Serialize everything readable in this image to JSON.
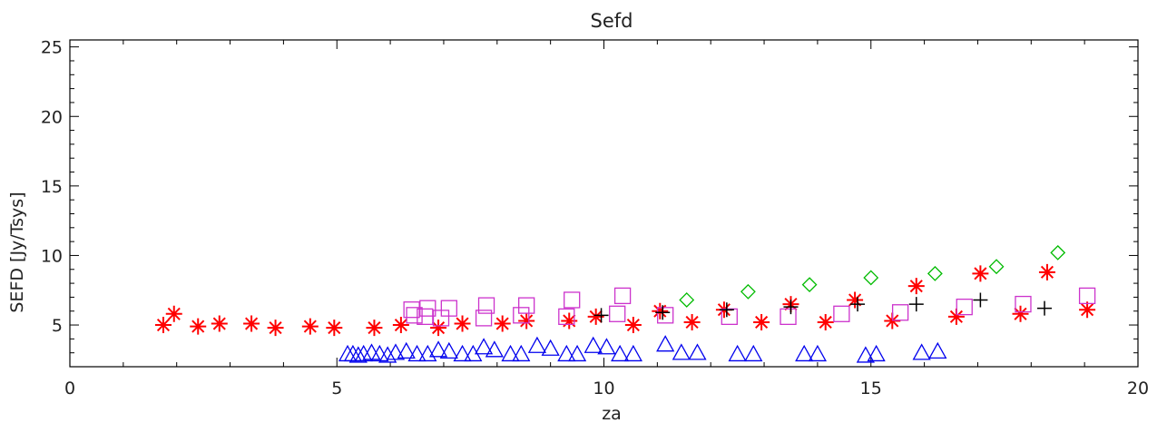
{
  "chart_data": {
    "type": "scatter",
    "title": "Sefd",
    "xlabel": "za",
    "ylabel": "SEFD [Jy/Tsys]",
    "xlim": [
      0,
      20
    ],
    "ylim": [
      2,
      25.5
    ],
    "xticks": [
      0,
      5,
      10,
      15,
      20
    ],
    "yticks": [
      5,
      10,
      15,
      20,
      25
    ],
    "grid": false,
    "legend": "none",
    "series": [
      {
        "marker": "asterisk",
        "color": "#ff0000",
        "points": [
          [
            1.75,
            5.0
          ],
          [
            1.95,
            5.8
          ],
          [
            2.4,
            4.9
          ],
          [
            2.8,
            5.1
          ],
          [
            3.4,
            5.1
          ],
          [
            3.85,
            4.8
          ],
          [
            4.5,
            4.9
          ],
          [
            4.95,
            4.8
          ],
          [
            5.7,
            4.8
          ],
          [
            6.2,
            5.0
          ],
          [
            6.9,
            4.8
          ],
          [
            7.35,
            5.1
          ],
          [
            8.1,
            5.1
          ],
          [
            8.55,
            5.3
          ],
          [
            9.35,
            5.3
          ],
          [
            9.85,
            5.6
          ],
          [
            10.55,
            5.0
          ],
          [
            11.05,
            6.0
          ],
          [
            11.65,
            5.2
          ],
          [
            12.25,
            6.1
          ],
          [
            12.95,
            5.2
          ],
          [
            13.5,
            6.5
          ],
          [
            14.15,
            5.2
          ],
          [
            14.7,
            6.8
          ],
          [
            15.4,
            5.3
          ],
          [
            15.85,
            7.8
          ],
          [
            16.6,
            5.6
          ],
          [
            17.05,
            8.7
          ],
          [
            17.8,
            5.8
          ],
          [
            18.3,
            8.8
          ],
          [
            19.05,
            6.1
          ]
        ]
      },
      {
        "marker": "square",
        "color": "#cc33cc",
        "points": [
          [
            6.4,
            6.1
          ],
          [
            6.45,
            5.7
          ],
          [
            6.65,
            5.6
          ],
          [
            6.7,
            6.2
          ],
          [
            6.95,
            5.5
          ],
          [
            7.1,
            6.2
          ],
          [
            7.75,
            5.5
          ],
          [
            7.8,
            6.4
          ],
          [
            8.45,
            5.7
          ],
          [
            8.55,
            6.4
          ],
          [
            9.3,
            5.6
          ],
          [
            9.4,
            6.8
          ],
          [
            10.25,
            5.8
          ],
          [
            10.35,
            7.1
          ],
          [
            11.15,
            5.7
          ],
          [
            12.35,
            5.6
          ],
          [
            13.45,
            5.6
          ],
          [
            14.45,
            5.8
          ],
          [
            15.55,
            5.9
          ],
          [
            16.75,
            6.3
          ],
          [
            17.85,
            6.5
          ],
          [
            19.05,
            7.1
          ]
        ]
      },
      {
        "marker": "plus",
        "color": "#000000",
        "points": [
          [
            9.95,
            5.7
          ],
          [
            11.1,
            5.9
          ],
          [
            12.3,
            6.1
          ],
          [
            13.5,
            6.3
          ],
          [
            14.75,
            6.5
          ],
          [
            15.85,
            6.5
          ],
          [
            17.05,
            6.8
          ],
          [
            18.25,
            6.2
          ]
        ]
      },
      {
        "marker": "diamond",
        "color": "#00bb00",
        "points": [
          [
            11.55,
            6.8
          ],
          [
            12.7,
            7.4
          ],
          [
            13.85,
            7.9
          ],
          [
            15.0,
            8.4
          ],
          [
            16.2,
            8.7
          ],
          [
            17.35,
            9.2
          ],
          [
            18.5,
            10.2
          ]
        ]
      },
      {
        "marker": "triangle",
        "color": "#0000ee",
        "points": [
          [
            5.2,
            2.9
          ],
          [
            5.3,
            2.9
          ],
          [
            5.4,
            2.8
          ],
          [
            5.5,
            2.9
          ],
          [
            5.65,
            3.0
          ],
          [
            5.8,
            2.9
          ],
          [
            5.95,
            2.8
          ],
          [
            6.1,
            3.0
          ],
          [
            6.3,
            3.1
          ],
          [
            6.5,
            2.9
          ],
          [
            6.7,
            2.9
          ],
          [
            6.9,
            3.2
          ],
          [
            7.1,
            3.1
          ],
          [
            7.35,
            2.9
          ],
          [
            7.55,
            2.9
          ],
          [
            7.75,
            3.4
          ],
          [
            7.95,
            3.2
          ],
          [
            8.25,
            2.9
          ],
          [
            8.45,
            2.9
          ],
          [
            8.75,
            3.5
          ],
          [
            9.0,
            3.3
          ],
          [
            9.3,
            2.9
          ],
          [
            9.5,
            2.9
          ],
          [
            9.8,
            3.5
          ],
          [
            10.05,
            3.4
          ],
          [
            10.3,
            2.9
          ],
          [
            10.55,
            2.9
          ],
          [
            11.15,
            3.6
          ],
          [
            11.45,
            3.0
          ],
          [
            11.75,
            3.0
          ],
          [
            12.5,
            2.9
          ],
          [
            12.8,
            2.9
          ],
          [
            13.75,
            2.9
          ],
          [
            14.0,
            2.9
          ],
          [
            14.9,
            2.8
          ],
          [
            15.1,
            2.9
          ],
          [
            15.95,
            3.0
          ],
          [
            16.25,
            3.1
          ]
        ]
      }
    ]
  }
}
